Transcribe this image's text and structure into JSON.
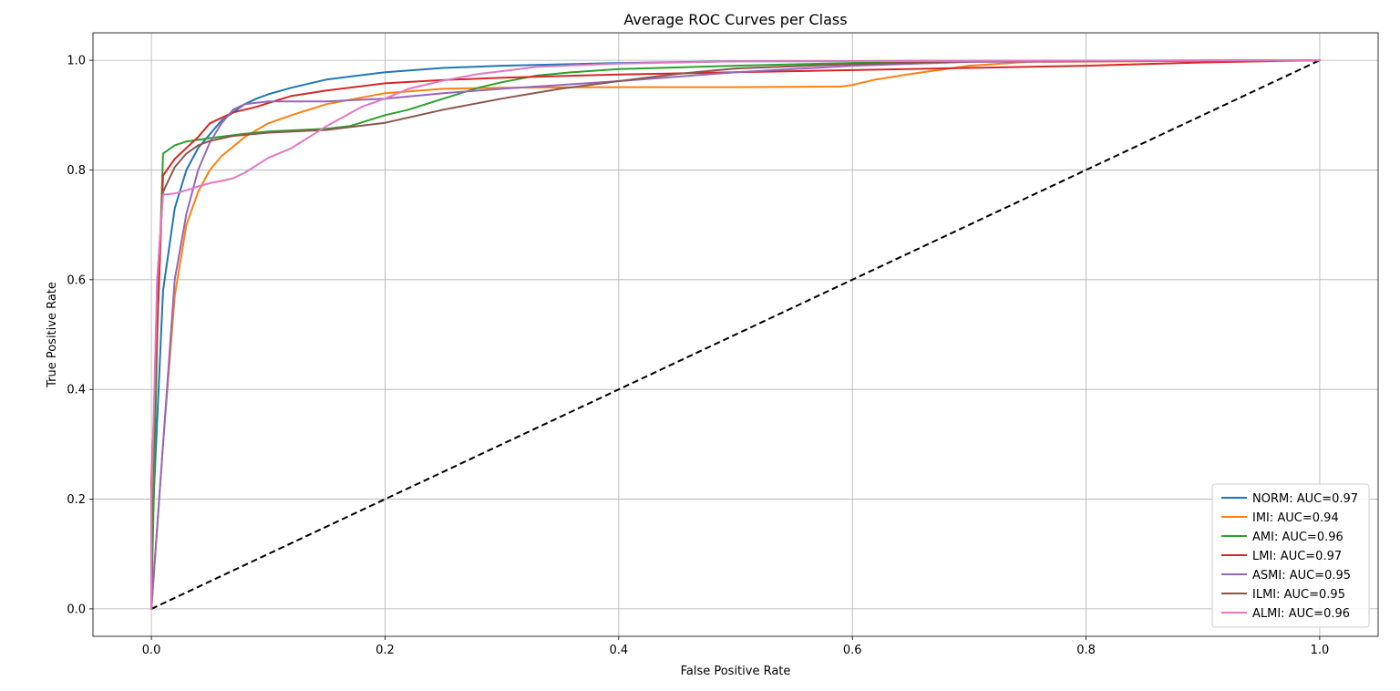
{
  "chart_data": {
    "type": "line",
    "title": "Average ROC Curves per Class",
    "xlabel": "False Positive Rate",
    "ylabel": "True Positive Rate",
    "xlim": [
      -0.05,
      1.05
    ],
    "ylim": [
      -0.05,
      1.05
    ],
    "xticks": [
      "0.0",
      "0.2",
      "0.4",
      "0.6",
      "0.8",
      "1.0"
    ],
    "yticks": [
      "0.0",
      "0.2",
      "0.4",
      "0.6",
      "0.8",
      "1.0"
    ],
    "grid": true,
    "legend_position": "lower-right",
    "diagonal": {
      "x": [
        0,
        1
      ],
      "y": [
        0,
        1
      ],
      "color": "#000000",
      "style": "dashed"
    },
    "series": [
      {
        "name": "NORM: AUC=0.97",
        "color": "#1f77b4",
        "x": [
          0,
          0,
          0.01,
          0.02,
          0.03,
          0.04,
          0.05,
          0.06,
          0.07,
          0.08,
          0.09,
          0.1,
          0.12,
          0.15,
          0.2,
          0.25,
          0.3,
          0.4,
          0.5,
          0.7,
          1.0
        ],
        "y": [
          0,
          0.11,
          0.58,
          0.73,
          0.8,
          0.84,
          0.865,
          0.89,
          0.905,
          0.92,
          0.93,
          0.938,
          0.95,
          0.965,
          0.978,
          0.986,
          0.99,
          0.995,
          0.998,
          0.999,
          1.0
        ]
      },
      {
        "name": "IMI: AUC=0.94",
        "color": "#ff7f0e",
        "x": [
          0,
          0.01,
          0.02,
          0.03,
          0.04,
          0.05,
          0.06,
          0.08,
          0.1,
          0.12,
          0.15,
          0.2,
          0.25,
          0.3,
          0.4,
          0.5,
          0.59,
          0.6,
          0.62,
          0.65,
          0.7,
          0.75,
          1.0
        ],
        "y": [
          0,
          0.3,
          0.57,
          0.7,
          0.76,
          0.8,
          0.825,
          0.86,
          0.885,
          0.9,
          0.92,
          0.94,
          0.948,
          0.95,
          0.951,
          0.951,
          0.952,
          0.955,
          0.965,
          0.975,
          0.99,
          0.997,
          1.0
        ]
      },
      {
        "name": "AMI: AUC=0.96",
        "color": "#2ca02c",
        "x": [
          0,
          0.005,
          0.01,
          0.02,
          0.03,
          0.05,
          0.08,
          0.1,
          0.15,
          0.17,
          0.2,
          0.22,
          0.25,
          0.28,
          0.3,
          0.33,
          0.36,
          0.4,
          0.5,
          0.6,
          0.7,
          1.0
        ],
        "y": [
          0,
          0.5,
          0.83,
          0.845,
          0.852,
          0.858,
          0.866,
          0.87,
          0.875,
          0.88,
          0.9,
          0.91,
          0.93,
          0.95,
          0.96,
          0.972,
          0.978,
          0.984,
          0.99,
          0.995,
          0.998,
          1.0
        ]
      },
      {
        "name": "LMI: AUC=0.97",
        "color": "#d62728",
        "x": [
          0,
          0,
          0.01,
          0.02,
          0.03,
          0.04,
          0.05,
          0.06,
          0.07,
          0.08,
          0.09,
          0.1,
          0.12,
          0.15,
          0.2,
          0.25,
          0.3,
          0.4,
          0.5,
          0.6,
          0.7,
          0.8,
          0.85,
          0.9,
          1.0
        ],
        "y": [
          0,
          0.23,
          0.79,
          0.82,
          0.84,
          0.86,
          0.885,
          0.895,
          0.905,
          0.91,
          0.915,
          0.922,
          0.935,
          0.945,
          0.958,
          0.964,
          0.968,
          0.974,
          0.978,
          0.982,
          0.986,
          0.99,
          0.993,
          0.996,
          1.0
        ]
      },
      {
        "name": "ASMI: AUC=0.95",
        "color": "#9467bd",
        "x": [
          0,
          0.01,
          0.02,
          0.03,
          0.04,
          0.05,
          0.06,
          0.07,
          0.08,
          0.1,
          0.15,
          0.2,
          0.25,
          0.3,
          0.35,
          0.4,
          0.45,
          0.5,
          0.6,
          0.7,
          1.0
        ],
        "y": [
          0,
          0.3,
          0.6,
          0.72,
          0.8,
          0.85,
          0.885,
          0.91,
          0.92,
          0.925,
          0.925,
          0.93,
          0.94,
          0.948,
          0.955,
          0.962,
          0.97,
          0.978,
          0.99,
          0.997,
          1.0
        ]
      },
      {
        "name": "ILMI: AUC=0.95",
        "color": "#8c564b",
        "x": [
          0,
          0,
          0.005,
          0.01,
          0.02,
          0.03,
          0.04,
          0.05,
          0.07,
          0.1,
          0.15,
          0.2,
          0.25,
          0.3,
          0.35,
          0.4,
          0.45,
          0.5,
          0.6,
          0.7,
          1.0
        ],
        "y": [
          0,
          0.15,
          0.6,
          0.76,
          0.805,
          0.83,
          0.845,
          0.853,
          0.862,
          0.868,
          0.873,
          0.886,
          0.91,
          0.93,
          0.948,
          0.962,
          0.975,
          0.985,
          0.993,
          0.998,
          1.0
        ]
      },
      {
        "name": "ALMI: AUC=0.96",
        "color": "#e377c2",
        "x": [
          0,
          0,
          0.005,
          0.01,
          0.02,
          0.03,
          0.04,
          0.05,
          0.06,
          0.07,
          0.08,
          0.1,
          0.12,
          0.15,
          0.18,
          0.2,
          0.22,
          0.25,
          0.28,
          0.3,
          0.33,
          0.4,
          0.5,
          1.0
        ],
        "y": [
          0,
          0.19,
          0.6,
          0.755,
          0.757,
          0.763,
          0.77,
          0.776,
          0.78,
          0.785,
          0.795,
          0.822,
          0.84,
          0.88,
          0.915,
          0.93,
          0.948,
          0.963,
          0.975,
          0.98,
          0.988,
          0.994,
          0.998,
          1.0
        ]
      }
    ]
  }
}
